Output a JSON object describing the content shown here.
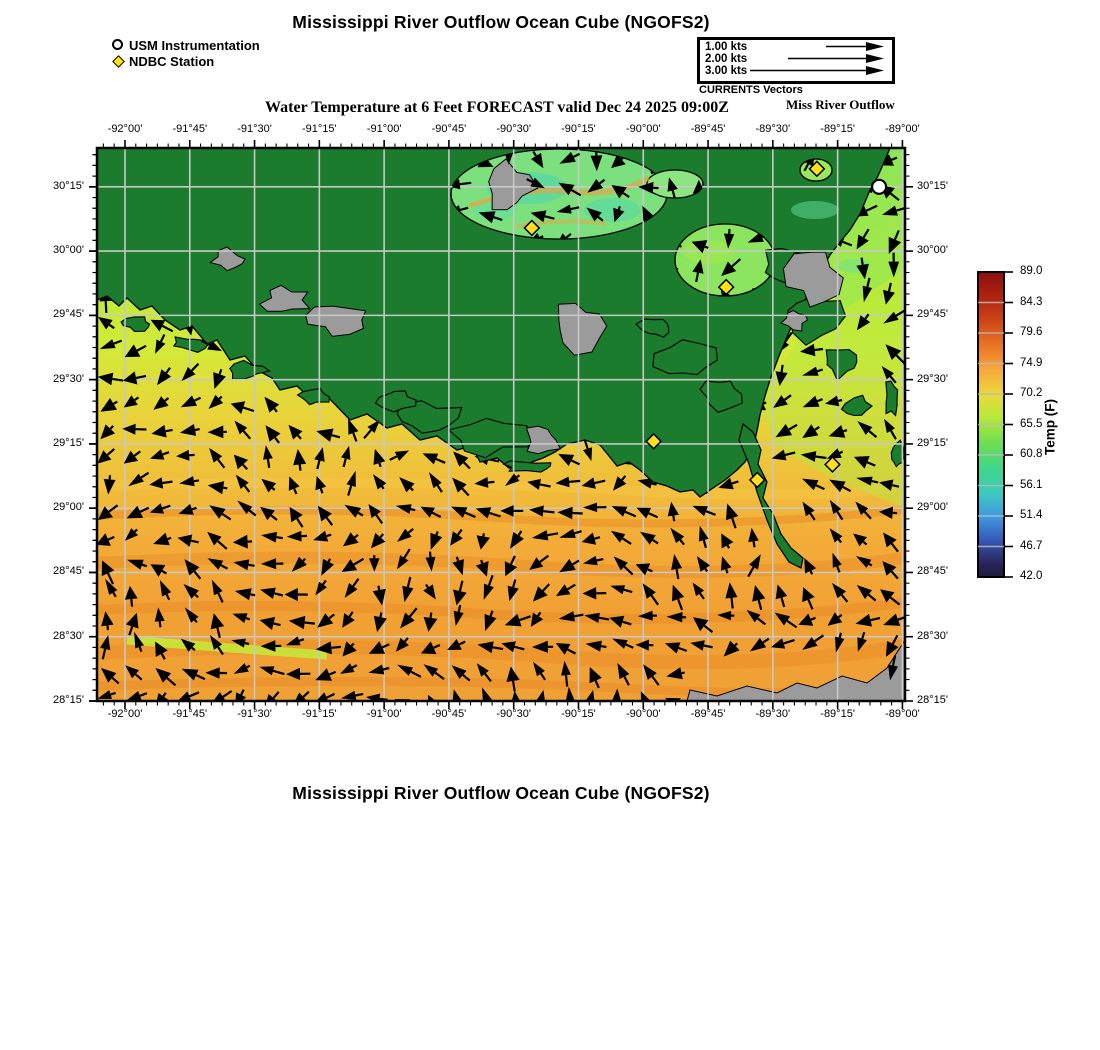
{
  "header": {
    "title": "Mississippi River Outflow Ocean Cube (NGOFS2)",
    "subtitle": "Water Temperature at 6 Feet FORECAST valid Dec 24 2025 09:00Z",
    "subtitle_right": "Miss River Outflow"
  },
  "footer": {
    "title": "Mississippi River Outflow Ocean Cube (NGOFS2)"
  },
  "legend": {
    "items": [
      {
        "marker": "circle",
        "label": "USM Instrumentation"
      },
      {
        "marker": "diamond",
        "label": "NDBC Station"
      }
    ]
  },
  "vector_legend": {
    "caption": "CURRENTS Vectors",
    "rows": [
      {
        "label": "1.00 kts",
        "line_len": 42
      },
      {
        "label": "2.00 kts",
        "line_len": 80
      },
      {
        "label": "3.00 kts",
        "line_len": 118
      }
    ]
  },
  "axes": {
    "lon_labels": [
      "-92°00'",
      "-91°45'",
      "-91°30'",
      "-91°15'",
      "-91°00'",
      "-90°45'",
      "-90°30'",
      "-90°15'",
      "-90°00'",
      "-89°45'",
      "-89°30'",
      "-89°15'",
      "-89°00'"
    ],
    "lat_labels": [
      "30°15'",
      "30°00'",
      "29°45'",
      "29°30'",
      "29°15'",
      "29°00'",
      "28°45'",
      "28°30'",
      "28°15'"
    ],
    "lon_values": [
      -92.0,
      -91.75,
      -91.5,
      -91.25,
      -91.0,
      -90.75,
      -90.5,
      -90.25,
      -90.0,
      -89.75,
      -89.5,
      -89.25,
      -89.0
    ],
    "lat_values": [
      30.25,
      30.0,
      29.75,
      29.5,
      29.25,
      29.0,
      28.75,
      28.5,
      28.25
    ],
    "lon_edge_range": [
      -92.108,
      -88.99
    ],
    "lat_edge_range": [
      30.401,
      28.25
    ]
  },
  "colorbar": {
    "title": "Temp (F)",
    "tick_labels": [
      "89.0",
      "84.3",
      "79.6",
      "74.9",
      "70.2",
      "65.5",
      "60.8",
      "56.1",
      "51.4",
      "46.7",
      "42.0"
    ],
    "min": 42.0,
    "max": 89.0,
    "gradient_stops": [
      [
        "0%",
        "#8c0f0e"
      ],
      [
        "8%",
        "#ae2310"
      ],
      [
        "16%",
        "#cf4517"
      ],
      [
        "24%",
        "#ea7423"
      ],
      [
        "32%",
        "#f5a83c"
      ],
      [
        "40%",
        "#ecd83b"
      ],
      [
        "48%",
        "#b5e93b"
      ],
      [
        "56%",
        "#6ede52"
      ],
      [
        "64%",
        "#41d687"
      ],
      [
        "72%",
        "#3ccdbb"
      ],
      [
        "80%",
        "#3f9be2"
      ],
      [
        "88%",
        "#3757b4"
      ],
      [
        "96%",
        "#282255"
      ],
      [
        "100%",
        "#201c40"
      ]
    ]
  },
  "stations": {
    "usm": [
      {
        "lon": -89.09,
        "lat": 30.25
      }
    ],
    "ndbc": [
      {
        "lon": -89.33,
        "lat": 30.32
      },
      {
        "lon": -90.43,
        "lat": 30.09
      },
      {
        "lon": -89.68,
        "lat": 29.86
      },
      {
        "lon": -89.96,
        "lat": 29.26
      },
      {
        "lon": -89.56,
        "lat": 29.11
      },
      {
        "lon": -89.27,
        "lat": 29.17
      }
    ]
  },
  "colors": {
    "land": "#1a7c2c",
    "coast_line": "#000000",
    "island_gray": "#9b9b9b",
    "gridline": "#c8c8c8",
    "arrow": "#000000",
    "station_diamond": "#ffe019",
    "station_circle": "#ffffff",
    "lake_green": "#7de07e",
    "lake_cyan": "#54d8a6",
    "sound_green": "#8ee757",
    "nearshore_yellow_green": "#b9ea33",
    "offshore_orange": "#f3a73a",
    "orange_streak": "#e88a26"
  }
}
